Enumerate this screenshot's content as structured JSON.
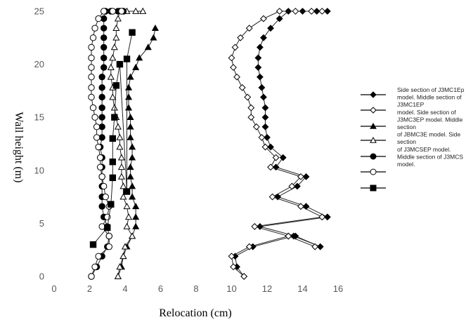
{
  "chart_data": {
    "type": "line",
    "xlabel": "Relocation (cm)",
    "ylabel": "Wall height (m)",
    "xlim": [
      0,
      16
    ],
    "ylim": [
      0,
      25
    ],
    "xticks": [
      "0",
      "2",
      "4",
      "6",
      "8",
      "10",
      "12",
      "14",
      "16"
    ],
    "yticks": [
      "0",
      "5",
      "10",
      "15",
      "20",
      "25"
    ],
    "grid": false,
    "legend_position": "right",
    "legend_lines": [
      "Side section of J3MC1Ep",
      "model. Middle section of",
      "J3MC1EP",
      "model. Side section of",
      "J3MC3EP model. Middle",
      "section",
      "of JBMC3E model. Side",
      "section",
      "of J3MCSEP model.",
      "Middle section of J3MCS",
      "model."
    ],
    "series": [
      {
        "marker": "filled-diamond",
        "line": true,
        "x": [
          10.7,
          10.3,
          10.2,
          11.2,
          13.5,
          15.0,
          13.6,
          11.6,
          15.4,
          14.2,
          12.6,
          13.7,
          14.2,
          12.5,
          12.9,
          12.2,
          12.0,
          11.9,
          11.9,
          11.9,
          11.8,
          11.7,
          11.6,
          11.5,
          11.5,
          11.6,
          11.8,
          12.2,
          12.7,
          13.2,
          14.0,
          14.8,
          15.4
        ],
        "y": [
          0,
          0.9,
          1.9,
          2.8,
          3.8,
          2.8,
          3.8,
          4.7,
          5.6,
          6.6,
          7.5,
          8.5,
          9.4,
          10.3,
          11.2,
          12.2,
          13.1,
          14.1,
          15.0,
          15.9,
          16.9,
          17.8,
          18.8,
          19.7,
          20.6,
          21.6,
          22.5,
          23.4,
          24.3,
          25.0,
          25.0,
          25.0,
          25.0
        ]
      },
      {
        "marker": "open-diamond",
        "line": true,
        "x": [
          10.7,
          10.1,
          10.0,
          11.0,
          13.2,
          14.7,
          13.2,
          11.3,
          15.1,
          13.9,
          12.3,
          13.4,
          13.9,
          12.2,
          12.5,
          11.9,
          11.7,
          11.4,
          11.1,
          11.1,
          10.9,
          10.6,
          10.3,
          10.1,
          10.0,
          10.2,
          10.5,
          11.0,
          11.8,
          12.7,
          13.6,
          14.5,
          15.1
        ],
        "y": [
          0,
          0.9,
          1.9,
          2.8,
          3.8,
          2.8,
          3.8,
          4.7,
          5.6,
          6.6,
          7.5,
          8.5,
          9.4,
          10.3,
          11.2,
          12.2,
          13.1,
          14.1,
          15.0,
          15.9,
          16.9,
          17.8,
          18.8,
          19.7,
          20.6,
          21.6,
          22.5,
          23.4,
          24.3,
          25.0,
          25.0,
          25.0,
          25.0
        ]
      },
      {
        "marker": "filled-triangle",
        "line": true,
        "x": [
          3.6,
          3.8,
          3.9,
          4.1,
          4.4,
          4.6,
          4.6,
          4.6,
          4.4,
          4.4,
          4.3,
          4.3,
          4.4,
          4.4,
          4.3,
          4.3,
          4.3,
          4.2,
          4.2,
          4.2,
          4.3,
          4.6,
          4.8,
          5.3,
          5.6,
          5.7
        ],
        "y": [
          0,
          0.9,
          1.9,
          2.8,
          3.8,
          4.7,
          5.6,
          6.6,
          7.5,
          8.5,
          9.4,
          10.3,
          11.2,
          12.2,
          13.1,
          14.1,
          15.0,
          15.9,
          16.9,
          17.8,
          18.8,
          19.7,
          20.6,
          21.6,
          22.5,
          23.4
        ]
      },
      {
        "marker": "open-triangle",
        "line": true,
        "x": [
          3.6,
          3.7,
          3.9,
          4.0,
          4.4,
          4.1,
          4.2,
          4.1,
          3.9,
          3.9,
          3.8,
          3.8,
          3.8,
          3.7,
          3.7,
          3.6,
          3.5,
          3.4,
          3.3,
          3.3,
          3.2,
          3.2,
          3.3,
          3.4,
          3.5,
          3.5,
          3.6,
          3.7,
          3.9,
          4.1,
          4.6,
          5.0
        ],
        "y": [
          0,
          0.9,
          1.9,
          2.8,
          3.8,
          4.7,
          5.6,
          6.6,
          7.5,
          8.5,
          9.4,
          10.3,
          11.2,
          12.2,
          13.1,
          14.1,
          15.0,
          15.9,
          16.9,
          17.8,
          18.8,
          19.7,
          20.6,
          21.6,
          22.5,
          23.4,
          24.3,
          25.0,
          25.0,
          25.0,
          25.0,
          25.0
        ]
      },
      {
        "marker": "filled-circle",
        "line": true,
        "x": [
          2.1,
          2.4,
          2.7,
          3.0,
          3.1,
          3.0,
          2.8,
          2.7,
          2.7,
          2.7,
          2.7,
          2.7,
          2.7,
          2.6,
          2.7,
          2.7,
          2.7,
          2.7,
          2.7,
          2.7,
          2.7,
          2.8,
          2.8,
          2.8,
          2.8,
          2.8,
          2.8,
          2.9,
          3.2,
          3.6,
          3.9
        ],
        "y": [
          0,
          0.9,
          1.9,
          2.8,
          3.8,
          4.7,
          5.6,
          6.6,
          7.5,
          8.5,
          9.4,
          10.3,
          11.2,
          12.2,
          13.1,
          14.1,
          15.0,
          15.9,
          16.9,
          17.8,
          18.8,
          19.7,
          20.6,
          21.6,
          22.5,
          23.4,
          24.3,
          25.0,
          25.0,
          25.0,
          25.0
        ]
      },
      {
        "marker": "open-circle",
        "line": true,
        "x": [
          2.1,
          2.3,
          2.5,
          3.1,
          3.1,
          2.7,
          3.0,
          3.1,
          2.9,
          2.8,
          2.7,
          2.6,
          2.6,
          2.5,
          2.4,
          2.4,
          2.3,
          2.2,
          2.1,
          2.1,
          2.1,
          2.1,
          2.1,
          2.1,
          2.2,
          2.3,
          2.5,
          2.8,
          3.3,
          3.8
        ],
        "y": [
          0,
          0.9,
          1.9,
          2.8,
          3.8,
          4.7,
          5.6,
          6.6,
          7.5,
          8.5,
          9.4,
          10.3,
          11.2,
          12.2,
          13.1,
          14.1,
          15.0,
          15.9,
          16.9,
          17.8,
          18.8,
          19.7,
          20.6,
          21.6,
          22.5,
          23.4,
          24.3,
          25.0,
          25.0,
          25.0
        ]
      },
      {
        "marker": "filled-square",
        "line": true,
        "x": [
          2.2,
          3.0,
          3.2,
          3.3,
          3.3,
          3.3,
          3.4,
          3.5,
          3.7,
          4.1,
          4.1,
          4.4
        ],
        "y": [
          3.0,
          4.6,
          6.8,
          9.3,
          10.8,
          13.0,
          15.0,
          18.0,
          20.0,
          8.0,
          20.5,
          23.0
        ]
      }
    ]
  }
}
